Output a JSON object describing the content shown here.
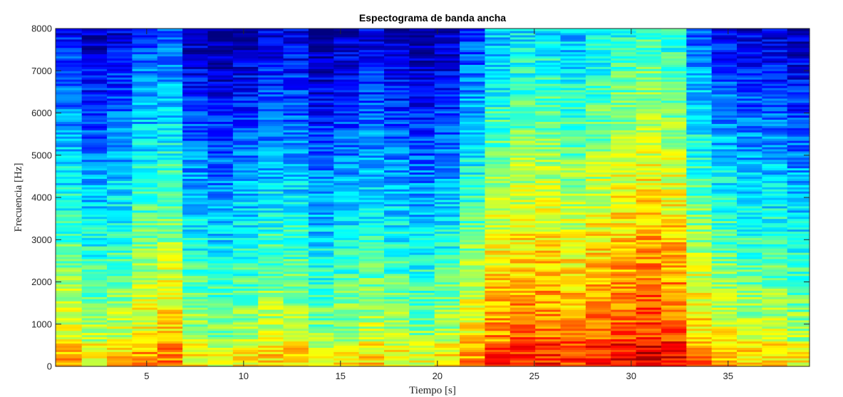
{
  "chart_data": {
    "type": "heatmap",
    "title": "Espectograma de banda ancha",
    "xlabel": "Tiempo [s]",
    "ylabel": "Frecuencia [Hz]",
    "xlim": [
      0.3,
      39.2
    ],
    "ylim": [
      0,
      8000
    ],
    "x_ticks": [
      5,
      10,
      15,
      20,
      25,
      30,
      35
    ],
    "y_ticks": [
      0,
      1000,
      2000,
      3000,
      4000,
      5000,
      6000,
      7000,
      8000
    ],
    "colormap": "jet",
    "grid": false,
    "frame_times_s": [
      1.0,
      2.3,
      3.6,
      4.9,
      6.2,
      7.5,
      8.8,
      10.1,
      11.4,
      12.7,
      14.0,
      15.3,
      16.6,
      17.9,
      19.2,
      20.5,
      21.8,
      23.1,
      24.4,
      25.7,
      27.0,
      28.3,
      29.6,
      30.9,
      32.2,
      33.5,
      34.8,
      36.1,
      37.4,
      38.7
    ],
    "frame_energy": [
      0.6,
      0.5,
      0.55,
      0.65,
      0.7,
      0.5,
      0.45,
      0.5,
      0.55,
      0.55,
      0.45,
      0.5,
      0.55,
      0.5,
      0.45,
      0.5,
      0.65,
      0.8,
      0.85,
      0.85,
      0.8,
      0.85,
      0.9,
      0.95,
      0.9,
      0.7,
      0.6,
      0.55,
      0.55,
      0.5
    ],
    "colors": {
      "low": "#00007f",
      "mid": "#7fff7f",
      "high": "#7f0000"
    }
  }
}
